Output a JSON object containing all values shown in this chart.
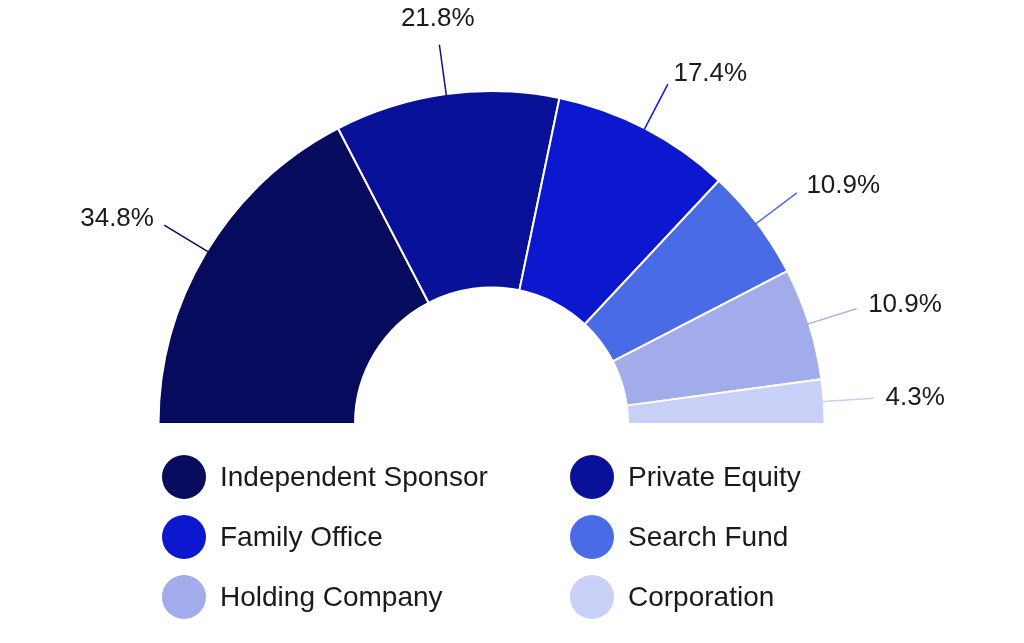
{
  "chart_data": {
    "type": "donut",
    "categories": [
      "Independent Sponsor",
      "Private Equity",
      "Family Office",
      "Search Fund",
      "Holding Company",
      "Corporation"
    ],
    "values": [
      34.8,
      21.8,
      17.4,
      10.9,
      10.9,
      4.3
    ],
    "colors": [
      "#070b5e",
      "#0a1199",
      "#0c17d0",
      "#4a6be6",
      "#a3acea",
      "#c8d0f8"
    ],
    "value_labels": [
      "34.8%",
      "21.8%",
      "17.4%",
      "10.9%",
      "10.9%",
      "4.3%"
    ],
    "legend": "bottom"
  }
}
